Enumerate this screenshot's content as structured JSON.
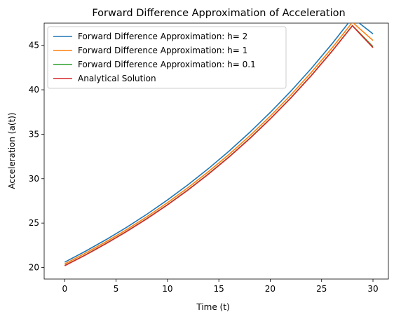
{
  "chart_data": {
    "type": "line",
    "title": "Forward Difference Approximation of Acceleration",
    "xlabel": "Time (t)",
    "ylabel": "Acceleration (a(t))",
    "xlim": [
      -2,
      31.5
    ],
    "ylim": [
      18.7,
      47.5
    ],
    "xticks": [
      0,
      5,
      10,
      15,
      20,
      25,
      30
    ],
    "yticks": [
      20,
      25,
      30,
      35,
      40,
      45
    ],
    "grid": false,
    "legend_position": "top-left",
    "series": [
      {
        "name": "Forward Difference Approximation: h= 2",
        "color": "#1f77b4",
        "x": [
          0,
          2,
          4,
          6,
          8,
          10,
          12,
          14,
          16,
          18,
          20,
          22,
          24,
          26,
          28,
          30
        ],
        "values": [
          20.6,
          21.82,
          23.12,
          24.51,
          26.0,
          27.6,
          29.31,
          31.14,
          33.1,
          35.2,
          37.44,
          39.84,
          42.4,
          45.16,
          48.1,
          46.3
        ]
      },
      {
        "name": "Forward Difference Approximation: h= 1",
        "color": "#ff7f0e",
        "x": [
          0,
          2,
          4,
          6,
          8,
          10,
          12,
          14,
          16,
          18,
          20,
          22,
          24,
          26,
          28,
          30
        ],
        "values": [
          20.4,
          21.6,
          22.88,
          24.25,
          25.72,
          27.3,
          28.99,
          30.8,
          32.74,
          34.81,
          37.03,
          39.41,
          41.96,
          44.68,
          47.6,
          45.55
        ]
      },
      {
        "name": "Forward Difference Approximation: h= 0.1",
        "color": "#2ca02c",
        "x": [
          0,
          2,
          4,
          6,
          8,
          10,
          12,
          14,
          16,
          18,
          20,
          22,
          24,
          26,
          28,
          30
        ],
        "values": [
          20.22,
          21.41,
          22.69,
          24.05,
          25.51,
          27.07,
          28.74,
          30.54,
          32.46,
          34.52,
          36.73,
          39.09,
          41.62,
          44.33,
          47.22,
          44.85
        ]
      },
      {
        "name": "Analytical Solution",
        "color": "#d62728",
        "x": [
          0,
          2,
          4,
          6,
          8,
          10,
          12,
          14,
          16,
          18,
          20,
          22,
          24,
          26,
          28,
          30
        ],
        "values": [
          20.2,
          21.39,
          22.67,
          24.03,
          25.49,
          27.05,
          28.72,
          30.52,
          32.44,
          34.5,
          36.71,
          39.07,
          41.6,
          44.31,
          47.2,
          44.75
        ]
      }
    ]
  }
}
